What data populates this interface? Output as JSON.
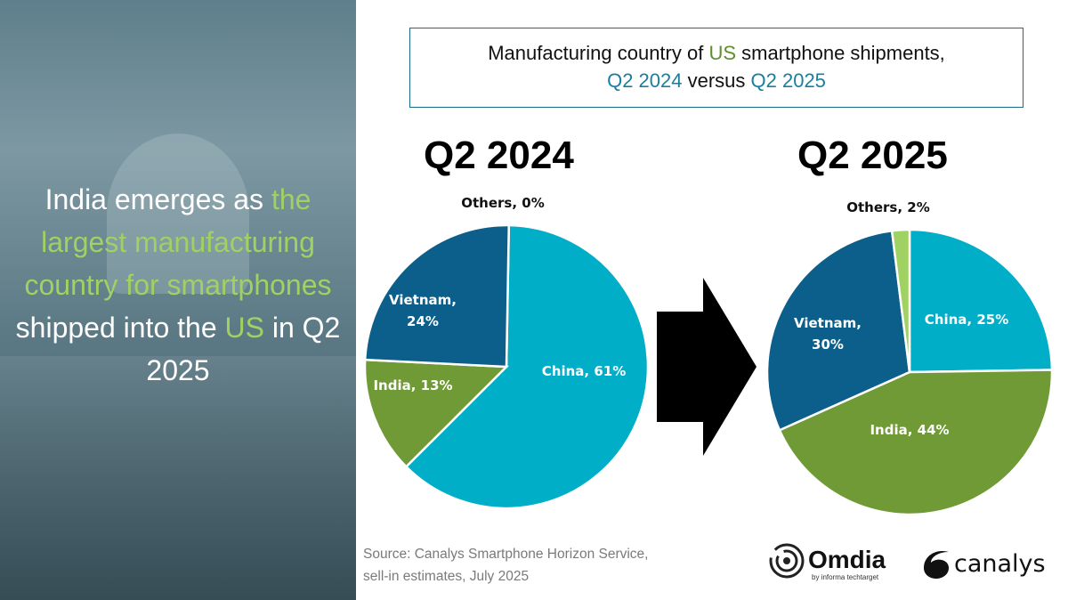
{
  "headline": {
    "parts": [
      {
        "text": "India emerges as ",
        "highlight": false
      },
      {
        "text": "the largest manufacturing country for smartphones",
        "highlight": true
      },
      {
        "text": " shipped into the ",
        "highlight": false
      },
      {
        "text": "US",
        "highlight": true
      },
      {
        "text": " in Q2 2025",
        "highlight": false
      }
    ]
  },
  "title": {
    "line1_a": "Manufacturing country of ",
    "line1_b": "US",
    "line1_c": " smartphone shipments,",
    "line2_a": "Q2 2024",
    "line2_b": " versus ",
    "line2_c": "Q2 2025"
  },
  "source": {
    "line1": "Source: Canalys Smartphone Horizon Service,",
    "line2": "sell-in estimates, July 2025"
  },
  "logos": {
    "omdia": "Omdia",
    "omdia_sub": "by informa techtarget",
    "canalys": "canalys"
  },
  "colors": {
    "China": "#00aec7",
    "India": "#6f9a35",
    "Vietnam": "#0c5f8a",
    "Others": "#9fd163",
    "arrow": "#000000"
  },
  "chart_data": [
    {
      "type": "pie",
      "title": "Q2 2024",
      "start": "top",
      "direction": "clockwise",
      "slices": [
        {
          "label": "China",
          "value": 61,
          "text": "China, 61%"
        },
        {
          "label": "India",
          "value": 13,
          "text": "India, 13%"
        },
        {
          "label": "Vietnam",
          "value": 24,
          "text": "Vietnam, 24%"
        },
        {
          "label": "Others",
          "value": 0,
          "text": "Others, 0%"
        }
      ]
    },
    {
      "type": "pie",
      "title": "Q2 2025",
      "start": "top",
      "direction": "clockwise",
      "slices": [
        {
          "label": "China",
          "value": 25,
          "text": "China, 25%"
        },
        {
          "label": "India",
          "value": 44,
          "text": "India, 44%"
        },
        {
          "label": "Vietnam",
          "value": 30,
          "text": "Vietnam, 30%"
        },
        {
          "label": "Others",
          "value": 2,
          "text": "Others, 2%"
        }
      ]
    }
  ]
}
